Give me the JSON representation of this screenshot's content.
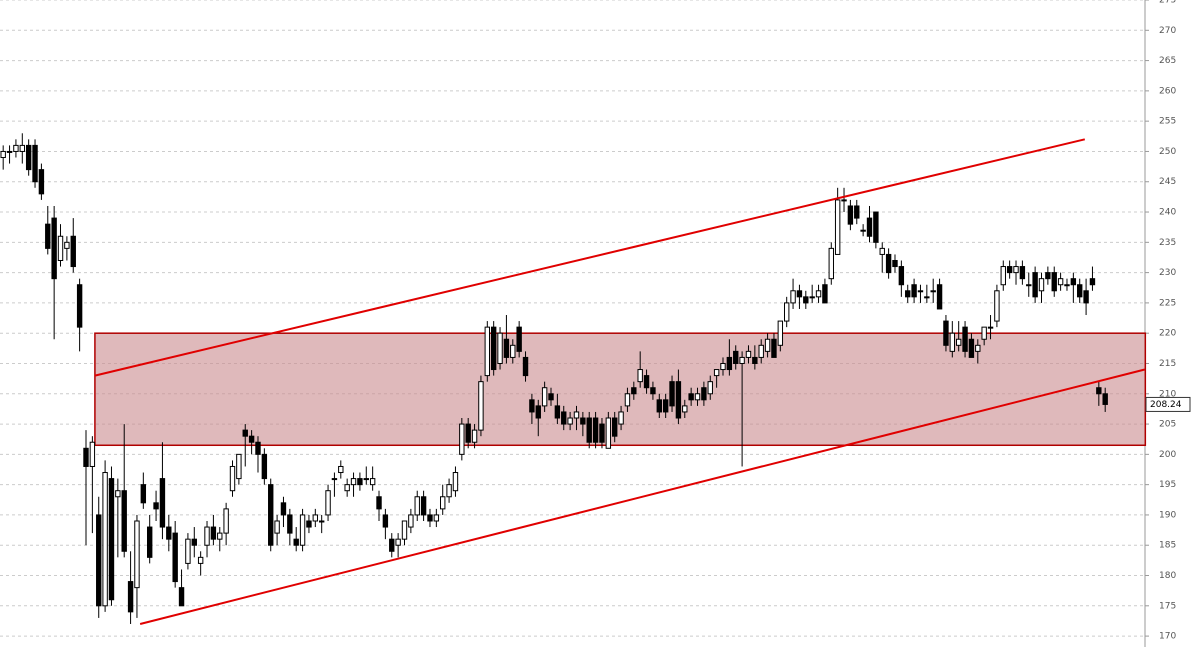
{
  "chart_data": {
    "type": "candlestick",
    "ylim": [
      168.2,
      275
    ],
    "yticks": [
      170,
      175,
      180,
      185,
      190,
      195,
      200,
      205,
      210,
      215,
      220,
      225,
      230,
      235,
      240,
      245,
      250,
      255,
      260,
      265,
      270,
      275
    ],
    "grid": true,
    "up_color": "#ffffff",
    "down_color": "#000000",
    "line_color": "#e00000",
    "zone_color": "#c98a8e",
    "zone": {
      "ylim": [
        201.5,
        220
      ],
      "x": [
        14.4,
        179.3
      ]
    },
    "trendlines": [
      {
        "x": [
          14.4,
          169.8
        ],
        "y": [
          213,
          252
        ]
      },
      {
        "x": [
          21.5,
          179.2
        ],
        "y": [
          172,
          214
        ]
      }
    ],
    "candles": [
      [
        249,
        251,
        247,
        250
      ],
      [
        250,
        251,
        248,
        250
      ],
      [
        250,
        252,
        249,
        251
      ],
      [
        250,
        253,
        248,
        251
      ],
      [
        251,
        252,
        246,
        247
      ],
      [
        251,
        252,
        244,
        245
      ],
      [
        247,
        248,
        242,
        243
      ],
      [
        238,
        241,
        233,
        234
      ],
      [
        239,
        241,
        219,
        229
      ],
      [
        232,
        238,
        231,
        236
      ],
      [
        234,
        236,
        232,
        235
      ],
      [
        236,
        239,
        230,
        231
      ],
      [
        228,
        229,
        217,
        221
      ],
      [
        201,
        204,
        185,
        198
      ],
      [
        198,
        203,
        187,
        202
      ],
      [
        190,
        193,
        173,
        175
      ],
      [
        175,
        199,
        174,
        197
      ],
      [
        196,
        198,
        175,
        176
      ],
      [
        193,
        196,
        183,
        194
      ],
      [
        194,
        205,
        183,
        184
      ],
      [
        179,
        184,
        172,
        174
      ],
      [
        178,
        190,
        173,
        189
      ],
      [
        195,
        197,
        191,
        192
      ],
      [
        188,
        190,
        182,
        183
      ],
      [
        192,
        194,
        189,
        191
      ],
      [
        196,
        202,
        186,
        188
      ],
      [
        188,
        190,
        184,
        186
      ],
      [
        187,
        189,
        178,
        179
      ],
      [
        178,
        181,
        175,
        175
      ],
      [
        182,
        187,
        181,
        186
      ],
      [
        186,
        188,
        183,
        185
      ],
      [
        182,
        184,
        180,
        183
      ],
      [
        185,
        189,
        183,
        188
      ],
      [
        188,
        190,
        185,
        186
      ],
      [
        186,
        188,
        184,
        187
      ],
      [
        187,
        192,
        185,
        191
      ],
      [
        194,
        199,
        193,
        198
      ],
      [
        196,
        200,
        195,
        200
      ],
      [
        204,
        205,
        198,
        203
      ],
      [
        203,
        204,
        200,
        202
      ],
      [
        202,
        203,
        197,
        200
      ],
      [
        200,
        201,
        195,
        196
      ],
      [
        195,
        196,
        184,
        185
      ],
      [
        187,
        190,
        185,
        189
      ],
      [
        192,
        193,
        188,
        190
      ],
      [
        190,
        191,
        185,
        187
      ],
      [
        186,
        188,
        184,
        185
      ],
      [
        185,
        191,
        184,
        190
      ],
      [
        189,
        190,
        187,
        188
      ],
      [
        189,
        191,
        188,
        190
      ],
      [
        189,
        190,
        187,
        189
      ],
      [
        190,
        195,
        189,
        194
      ],
      [
        196,
        197,
        193,
        196
      ],
      [
        197,
        199,
        196,
        198
      ],
      [
        194,
        196,
        193,
        195
      ],
      [
        195,
        197,
        193,
        196
      ],
      [
        196,
        197,
        194,
        195
      ],
      [
        196,
        198,
        195,
        196
      ],
      [
        195,
        198,
        194,
        196
      ],
      [
        193,
        194,
        189,
        191
      ],
      [
        190,
        191,
        186,
        188
      ],
      [
        186,
        187,
        183,
        184
      ],
      [
        185,
        187,
        183,
        186
      ],
      [
        186,
        189,
        185,
        189
      ],
      [
        188,
        191,
        187,
        190
      ],
      [
        190,
        194,
        189,
        193
      ],
      [
        193,
        194,
        189,
        190
      ],
      [
        190,
        191,
        188,
        189
      ],
      [
        189,
        191,
        188,
        190
      ],
      [
        191,
        195,
        190,
        193
      ],
      [
        193,
        196,
        192,
        195
      ],
      [
        194,
        198,
        193,
        197
      ],
      [
        200,
        206,
        199,
        205
      ],
      [
        205,
        206,
        201,
        202
      ],
      [
        202,
        205,
        201,
        204
      ],
      [
        204,
        213,
        203,
        212
      ],
      [
        213,
        222,
        212,
        221
      ],
      [
        221,
        222,
        213,
        214
      ],
      [
        215,
        221,
        214,
        220
      ],
      [
        219,
        223,
        215,
        216
      ],
      [
        216,
        219,
        215,
        218
      ],
      [
        221,
        222,
        216,
        217
      ],
      [
        216,
        217,
        212,
        213
      ],
      [
        209,
        210,
        205,
        207
      ],
      [
        208,
        209,
        203,
        206
      ],
      [
        208,
        212,
        207,
        211
      ],
      [
        210,
        211,
        208,
        209
      ],
      [
        208,
        210,
        205,
        206
      ],
      [
        207,
        208,
        204,
        205
      ],
      [
        205,
        207,
        204,
        206
      ],
      [
        206,
        208,
        204,
        207
      ],
      [
        206,
        207,
        203,
        205
      ],
      [
        206,
        207,
        201,
        202
      ],
      [
        206,
        207,
        201,
        202
      ],
      [
        205,
        206,
        201,
        202
      ],
      [
        201,
        207,
        201,
        206
      ],
      [
        206,
        207,
        202,
        203
      ],
      [
        205,
        208,
        204,
        207
      ],
      [
        208,
        211,
        207,
        210
      ],
      [
        211,
        212,
        209,
        210
      ],
      [
        212,
        217,
        211,
        214
      ],
      [
        213,
        214,
        210,
        211
      ],
      [
        211,
        212,
        209,
        210
      ],
      [
        209,
        210,
        206,
        207
      ],
      [
        209,
        210,
        206,
        207
      ],
      [
        212,
        213,
        207,
        208
      ],
      [
        212,
        214,
        205,
        206
      ],
      [
        207,
        209,
        206,
        208
      ],
      [
        210,
        211,
        208,
        209
      ],
      [
        209,
        211,
        208,
        210
      ],
      [
        211,
        212,
        208,
        209
      ],
      [
        210,
        213,
        209,
        212
      ],
      [
        213,
        214,
        211,
        214
      ],
      [
        214,
        216,
        213,
        215
      ],
      [
        216,
        219,
        213,
        214
      ],
      [
        217,
        218,
        214,
        215
      ],
      [
        215,
        217,
        198,
        216
      ],
      [
        216,
        218,
        215,
        217
      ],
      [
        216,
        218,
        214,
        215
      ],
      [
        216,
        219,
        215,
        218
      ],
      [
        217,
        220,
        216,
        219
      ],
      [
        219,
        220,
        216,
        216
      ],
      [
        218,
        222,
        217,
        222
      ],
      [
        222,
        226,
        221,
        225
      ],
      [
        225,
        229,
        224,
        227
      ],
      [
        227,
        228,
        224,
        226
      ],
      [
        226,
        227,
        224,
        225
      ],
      [
        226,
        228,
        225,
        226
      ],
      [
        226,
        228,
        225,
        227
      ],
      [
        228,
        229,
        225,
        225
      ],
      [
        229,
        235,
        228,
        234
      ],
      [
        233,
        244,
        233,
        242
      ],
      [
        242,
        244,
        240,
        242
      ],
      [
        241,
        242,
        237,
        238
      ],
      [
        241,
        242,
        238,
        239
      ],
      [
        237,
        238,
        236,
        237
      ],
      [
        239,
        241,
        235,
        236
      ],
      [
        240,
        240,
        234,
        235
      ],
      [
        233,
        235,
        230,
        234
      ],
      [
        233,
        234,
        229,
        230
      ],
      [
        232,
        233,
        230,
        231
      ],
      [
        231,
        232,
        226,
        228
      ],
      [
        227,
        228,
        225,
        226
      ],
      [
        228,
        229,
        225,
        226
      ],
      [
        227,
        228,
        225,
        227
      ],
      [
        226,
        228,
        225,
        226
      ],
      [
        227,
        229,
        225,
        227
      ],
      [
        228,
        229,
        224,
        224
      ],
      [
        222,
        223,
        217,
        218
      ],
      [
        217,
        222,
        216,
        220
      ],
      [
        218,
        222,
        217,
        219
      ],
      [
        221,
        222,
        216,
        217
      ],
      [
        219,
        220,
        216,
        216
      ],
      [
        217,
        219,
        215,
        218
      ],
      [
        219,
        221,
        218,
        221
      ],
      [
        221,
        223,
        219,
        221
      ],
      [
        222,
        228,
        221,
        227
      ],
      [
        228,
        232,
        227,
        231
      ],
      [
        231,
        232,
        229,
        230
      ],
      [
        230,
        232,
        228,
        231
      ],
      [
        231,
        232,
        228,
        229
      ],
      [
        228,
        230,
        226,
        228
      ],
      [
        230,
        231,
        225,
        226
      ],
      [
        227,
        230,
        225,
        229
      ],
      [
        230,
        231,
        228,
        229
      ],
      [
        230,
        231,
        226,
        227
      ],
      [
        228,
        230,
        227,
        229
      ],
      [
        228,
        229,
        227,
        228
      ],
      [
        229,
        230,
        225,
        228
      ],
      [
        228,
        229,
        225,
        226
      ],
      [
        227,
        229,
        223,
        225
      ],
      [
        229,
        231,
        227,
        228
      ],
      [
        211,
        212,
        208,
        210
      ],
      [
        210,
        211,
        207,
        208.24
      ]
    ]
  }
}
